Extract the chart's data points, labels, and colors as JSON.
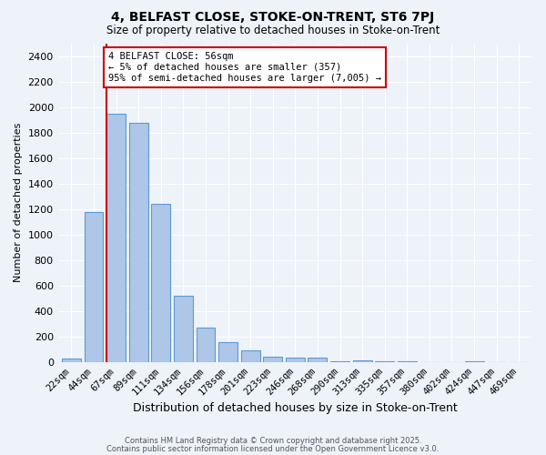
{
  "title": "4, BELFAST CLOSE, STOKE-ON-TRENT, ST6 7PJ",
  "subtitle": "Size of property relative to detached houses in Stoke-on-Trent",
  "xlabel": "Distribution of detached houses by size in Stoke-on-Trent",
  "ylabel": "Number of detached properties",
  "bar_labels": [
    "22sqm",
    "44sqm",
    "67sqm",
    "89sqm",
    "111sqm",
    "134sqm",
    "156sqm",
    "178sqm",
    "201sqm",
    "223sqm",
    "246sqm",
    "268sqm",
    "290sqm",
    "313sqm",
    "335sqm",
    "357sqm",
    "380sqm",
    "402sqm",
    "424sqm",
    "447sqm",
    "469sqm"
  ],
  "bar_values": [
    25,
    1175,
    1950,
    1875,
    1240,
    520,
    270,
    155,
    90,
    45,
    35,
    35,
    10,
    15,
    5,
    5,
    2,
    2,
    5,
    3,
    2
  ],
  "bar_color": "#aec6e8",
  "bar_edge_color": "#5b9bd5",
  "annotation_line1": "4 BELFAST CLOSE: 56sqm",
  "annotation_line2": "← 5% of detached houses are smaller (357)",
  "annotation_line3": "95% of semi-detached houses are larger (7,005) →",
  "annotation_box_color": "#ffffff",
  "annotation_box_edge": "#cc0000",
  "red_line_color": "#cc0000",
  "ylim": [
    0,
    2500
  ],
  "yticks": [
    0,
    200,
    400,
    600,
    800,
    1000,
    1200,
    1400,
    1600,
    1800,
    2000,
    2200,
    2400
  ],
  "background_color": "#eef2f9",
  "grid_color": "#ffffff",
  "footer1": "Contains HM Land Registry data © Crown copyright and database right 2025.",
  "footer2": "Contains public sector information licensed under the Open Government Licence v3.0."
}
